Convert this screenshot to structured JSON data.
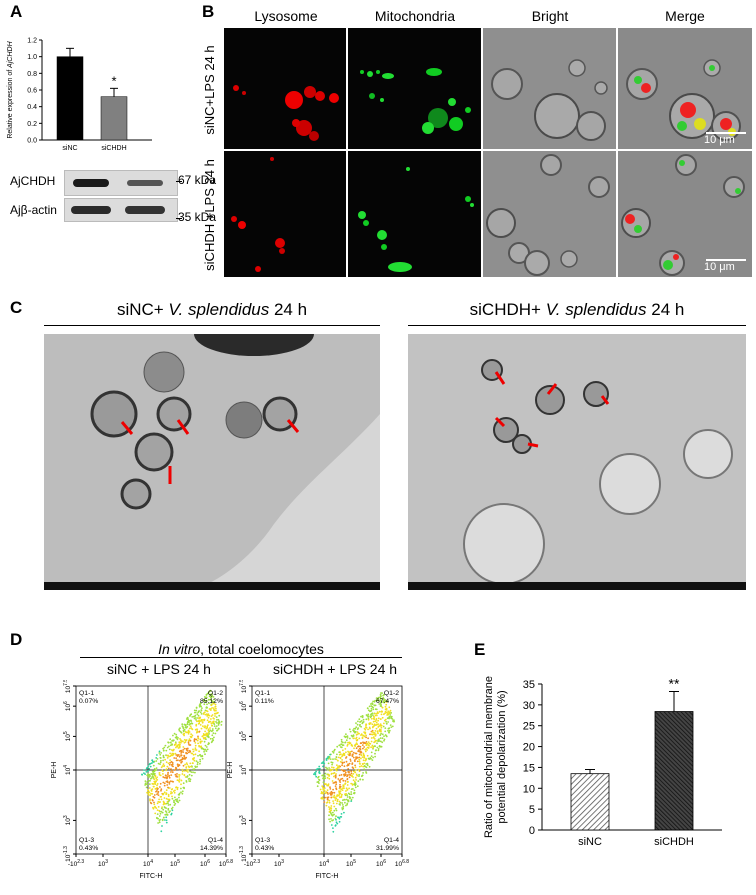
{
  "panels": {
    "A": "A",
    "B": "B",
    "C": "C",
    "D": "D",
    "E": "E"
  },
  "panel_a": {
    "ylabel": "Relative expression of AjCHDH",
    "y_ticks": [
      "0.0",
      "0.2",
      "0.4",
      "0.6",
      "0.8",
      "1.0",
      "1.2"
    ],
    "significance": "*",
    "blot_labels": {
      "top": "AjCHDH",
      "bottom": "Ajβ-actin"
    },
    "blot_markers": {
      "kda67": "67 kDa",
      "kda35": "35 kDa"
    }
  },
  "panel_b": {
    "columns": [
      "Lysosome",
      "Mitochondria",
      "Bright",
      "Merge"
    ],
    "rows": [
      "siNC+LPS 24 h",
      "siCHDH +LPS 24 h"
    ],
    "scale_bar": "10 μm"
  },
  "panel_c": {
    "left_title": "siNC+ V. splendidus 24 h",
    "right_title": "siCHDH+ V. splendidus 24 h",
    "left_title_parts": [
      "siNC+ ",
      "V. splendidus",
      " 24 h"
    ],
    "right_title_parts": [
      "siCHDH+ ",
      "V. splendidus",
      " 24 h"
    ]
  },
  "panel_d": {
    "title_italic": "In vitro",
    "title_rest": ", total coelomocytes",
    "plots": [
      {
        "title": "siNC + LPS 24 h",
        "q1": "Q1-1\n0.07%",
        "q2": "Q1-2\n85.12%",
        "q3": "Q1-3\n0.43%",
        "q4": "Q1-4\n14.39%"
      },
      {
        "title": "siCHDH + LPS 24 h",
        "q1": "Q1-1\n0.11%",
        "q2": "Q1-2\n67.47%",
        "q3": "Q1-3\n0.43%",
        "q4": "Q1-4\n31.99%"
      }
    ],
    "xlabel": "FITC-H",
    "ylabel": "PE-H",
    "x_ticks": [
      "-10^2.3",
      "10^3",
      "10^4",
      "10^5",
      "10^6",
      "10^6.8"
    ],
    "y_ticks": [
      "10^-1.3",
      "10^3",
      "10^4",
      "10^5",
      "10^6",
      "10^7.5"
    ]
  },
  "chart_data": [
    {
      "type": "bar",
      "panel": "A",
      "categories": [
        "siNC",
        "siCHDH"
      ],
      "values": [
        1.0,
        0.52
      ],
      "errors": [
        0.1,
        0.1
      ],
      "ylabel": "Relative expression of AjCHDH",
      "ylim": [
        0,
        1.2
      ],
      "colors": [
        "#000000",
        "#808080"
      ],
      "annotations": {
        "siCHDH": "*"
      }
    },
    {
      "type": "bar",
      "panel": "E",
      "categories": [
        "siNC",
        "siCHDH"
      ],
      "values": [
        13.5,
        28.4
      ],
      "errors": [
        1.0,
        4.8
      ],
      "ylabel": "Ratio of mitochondrial membrane potential depolarization (%)",
      "ylim": [
        0,
        35
      ],
      "y_ticks": [
        0,
        5,
        10,
        15,
        20,
        25,
        30,
        35
      ],
      "annotations": {
        "siCHDH": "**"
      }
    }
  ]
}
